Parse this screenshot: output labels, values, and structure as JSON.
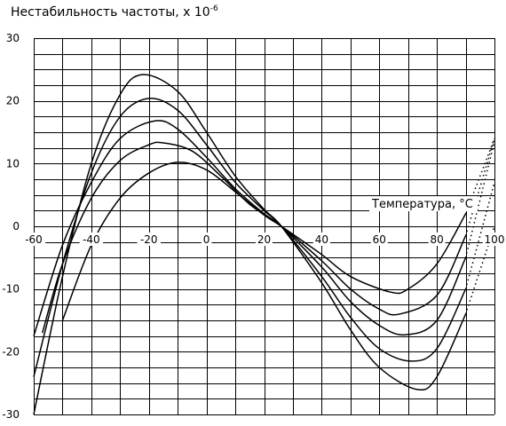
{
  "chart_data": {
    "type": "line",
    "title": "Нестабильность частоты, х 10",
    "title_exponent": "-6",
    "xlabel": "Температура, °С",
    "ylabel": "",
    "xlim": [
      -60,
      100
    ],
    "ylim": [
      -30,
      30
    ],
    "x_ticks": [
      -60,
      -40,
      -20,
      0,
      20,
      40,
      60,
      80,
      100
    ],
    "y_ticks": [
      30,
      20,
      10,
      0,
      -10,
      -20,
      -30
    ],
    "grid": true,
    "grid_x_step": 10,
    "grid_y_step": 2.5,
    "cross_point": {
      "x": 26,
      "y": 0
    },
    "series": [
      {
        "peak": {
          "x": -22,
          "y": 24.2
        },
        "trough": {
          "x": 73,
          "y": -26
        },
        "solid_until_x": 90,
        "dotted_until_x": 100,
        "points": [
          [
            -60,
            -30
          ],
          [
            -50,
            -8
          ],
          [
            -40,
            10
          ],
          [
            -30,
            21
          ],
          [
            -22,
            24.2
          ],
          [
            -10,
            21.5
          ],
          [
            0,
            15
          ],
          [
            10,
            8
          ],
          [
            20,
            2.7
          ],
          [
            26,
            0
          ],
          [
            40,
            -9
          ],
          [
            50,
            -16.5
          ],
          [
            60,
            -22.5
          ],
          [
            73,
            -26
          ],
          [
            80,
            -24
          ],
          [
            90,
            -14
          ],
          [
            100,
            0
          ]
        ]
      },
      {
        "peak": {
          "x": -20,
          "y": 20.4
        },
        "trough": {
          "x": 71,
          "y": -21.5
        },
        "solid_until_x": 90,
        "dotted_until_x": 100,
        "points": [
          [
            -60,
            -24
          ],
          [
            -50,
            -6
          ],
          [
            -40,
            8.5
          ],
          [
            -30,
            17.5
          ],
          [
            -20,
            20.4
          ],
          [
            -10,
            18.5
          ],
          [
            0,
            13
          ],
          [
            10,
            7
          ],
          [
            20,
            2.5
          ],
          [
            26,
            0
          ],
          [
            40,
            -8
          ],
          [
            50,
            -14.5
          ],
          [
            60,
            -19.5
          ],
          [
            71,
            -21.5
          ],
          [
            80,
            -19.5
          ],
          [
            90,
            -10
          ],
          [
            100,
            7
          ]
        ]
      },
      {
        "peak": {
          "x": -18,
          "y": 16.8
        },
        "trough": {
          "x": 69,
          "y": -17.3
        },
        "solid_until_x": 90,
        "dotted_until_x": 100,
        "points": [
          [
            -60,
            -17.5
          ],
          [
            -50,
            -3
          ],
          [
            -40,
            7
          ],
          [
            -30,
            14
          ],
          [
            -18,
            16.8
          ],
          [
            -10,
            15.5
          ],
          [
            0,
            11
          ],
          [
            10,
            6
          ],
          [
            20,
            2
          ],
          [
            26,
            0
          ],
          [
            40,
            -6.5
          ],
          [
            50,
            -12
          ],
          [
            60,
            -15.8
          ],
          [
            69,
            -17.3
          ],
          [
            80,
            -15
          ],
          [
            90,
            -5
          ],
          [
            100,
            13.5
          ]
        ]
      },
      {
        "peak": {
          "x": -15,
          "y": 13.3
        },
        "trough": {
          "x": 67,
          "y": -14
        },
        "solid_until_x": 93,
        "dotted_until_x": 100,
        "points": [
          [
            -57,
            -17
          ],
          [
            -50,
            -6
          ],
          [
            -40,
            4.5
          ],
          [
            -30,
            10.5
          ],
          [
            -20,
            13
          ],
          [
            -15,
            13.3
          ],
          [
            -5,
            12
          ],
          [
            5,
            8
          ],
          [
            15,
            3.5
          ],
          [
            26,
            0
          ],
          [
            40,
            -5.5
          ],
          [
            50,
            -10
          ],
          [
            60,
            -13.2
          ],
          [
            67,
            -14
          ],
          [
            80,
            -11
          ],
          [
            90,
            -1.5
          ],
          [
            100,
            14
          ]
        ]
      },
      {
        "peak": {
          "x": -10,
          "y": 10.2
        },
        "trough": {
          "x": 64,
          "y": -10.5
        },
        "solid_until_x": 90,
        "dotted_until_x": 100,
        "points": [
          [
            -50,
            -15
          ],
          [
            -40,
            -3
          ],
          [
            -30,
            4.5
          ],
          [
            -20,
            8.5
          ],
          [
            -10,
            10.2
          ],
          [
            0,
            9
          ],
          [
            10,
            5.5
          ],
          [
            20,
            1.8
          ],
          [
            26,
            0
          ],
          [
            40,
            -4.5
          ],
          [
            50,
            -8
          ],
          [
            64,
            -10.5
          ],
          [
            70,
            -10
          ],
          [
            80,
            -6
          ],
          [
            90,
            2
          ],
          [
            100,
            14
          ]
        ]
      }
    ]
  }
}
